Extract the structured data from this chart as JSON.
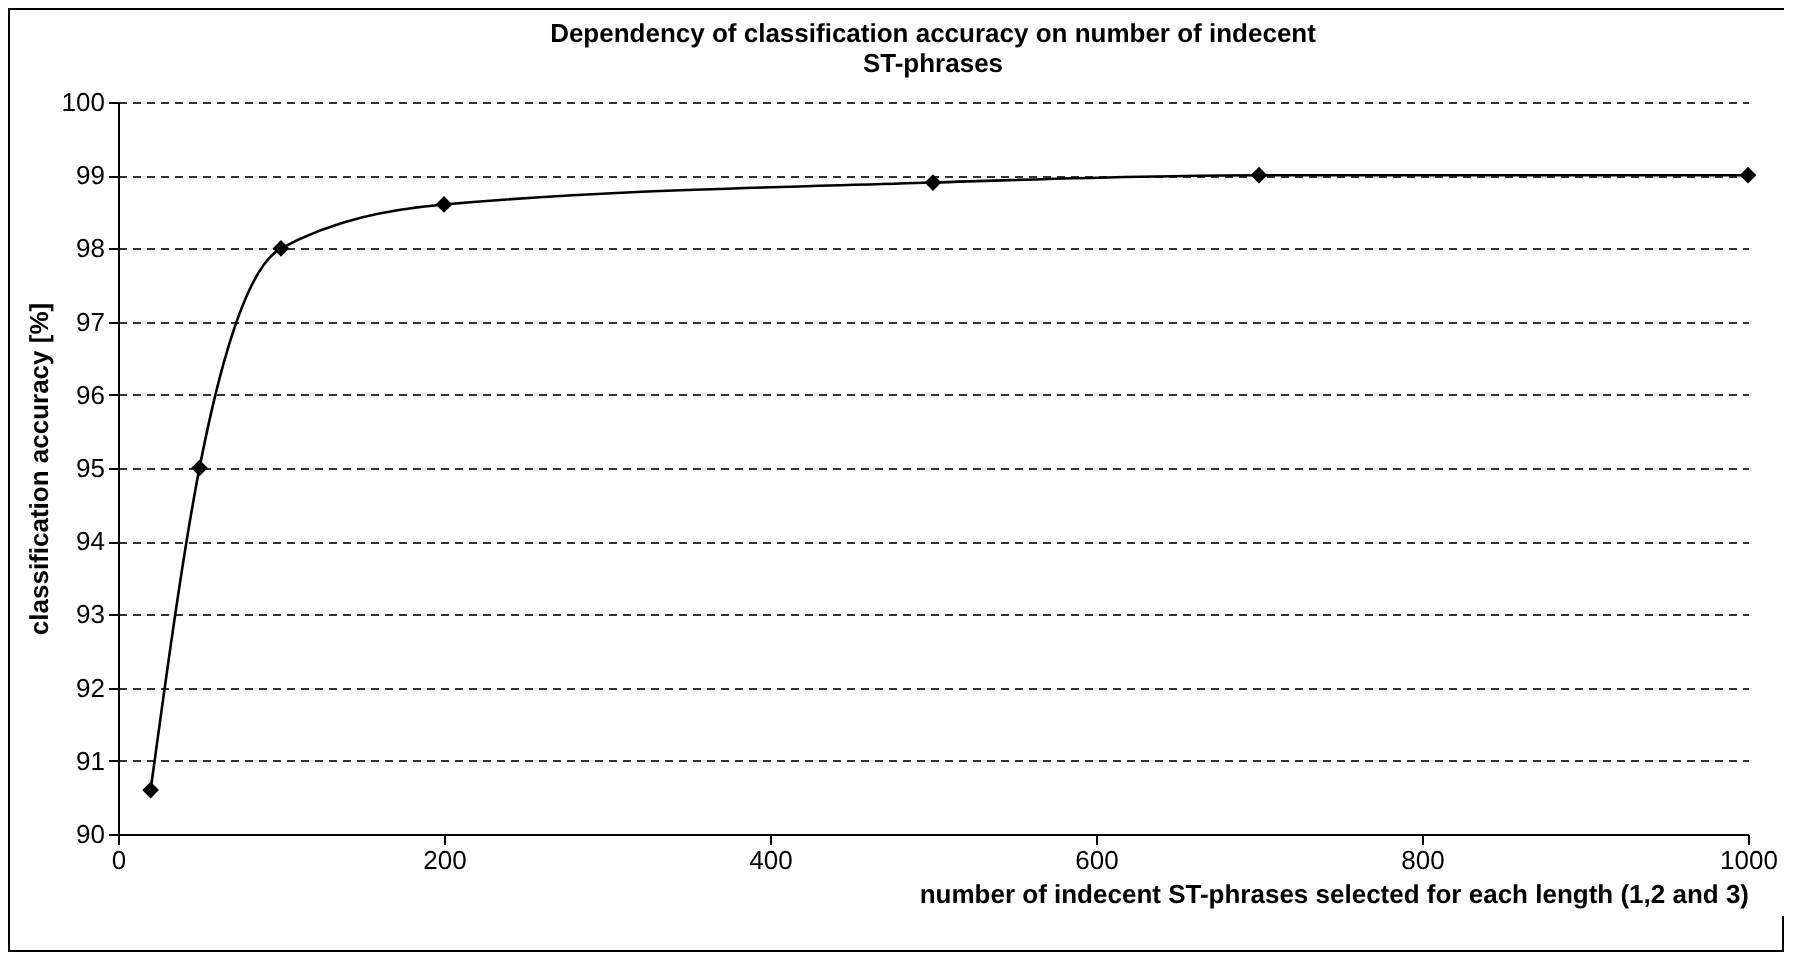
{
  "chart_data": {
    "type": "line",
    "title": "Dependency of classification accuracy on number of indecent ST-phrases",
    "xlabel": "number of indecent ST-phrases selected for each length (1,2 and 3)",
    "ylabel": "classification accuracy [%]",
    "x": [
      20,
      50,
      100,
      200,
      500,
      700,
      1000
    ],
    "series": [
      {
        "color": "#000000",
        "values": [
          90.6,
          95,
          98,
          98.6,
          98.9,
          99,
          99
        ]
      }
    ],
    "xlim": [
      0,
      1000
    ],
    "xticks": [
      0,
      200,
      400,
      600,
      800,
      1000
    ],
    "ylim": [
      90,
      100
    ],
    "yticks": [
      90,
      91,
      92,
      93,
      94,
      95,
      96,
      97,
      98,
      99,
      100
    ],
    "grid": "y",
    "marker": "diamond",
    "line_style": "solid"
  }
}
